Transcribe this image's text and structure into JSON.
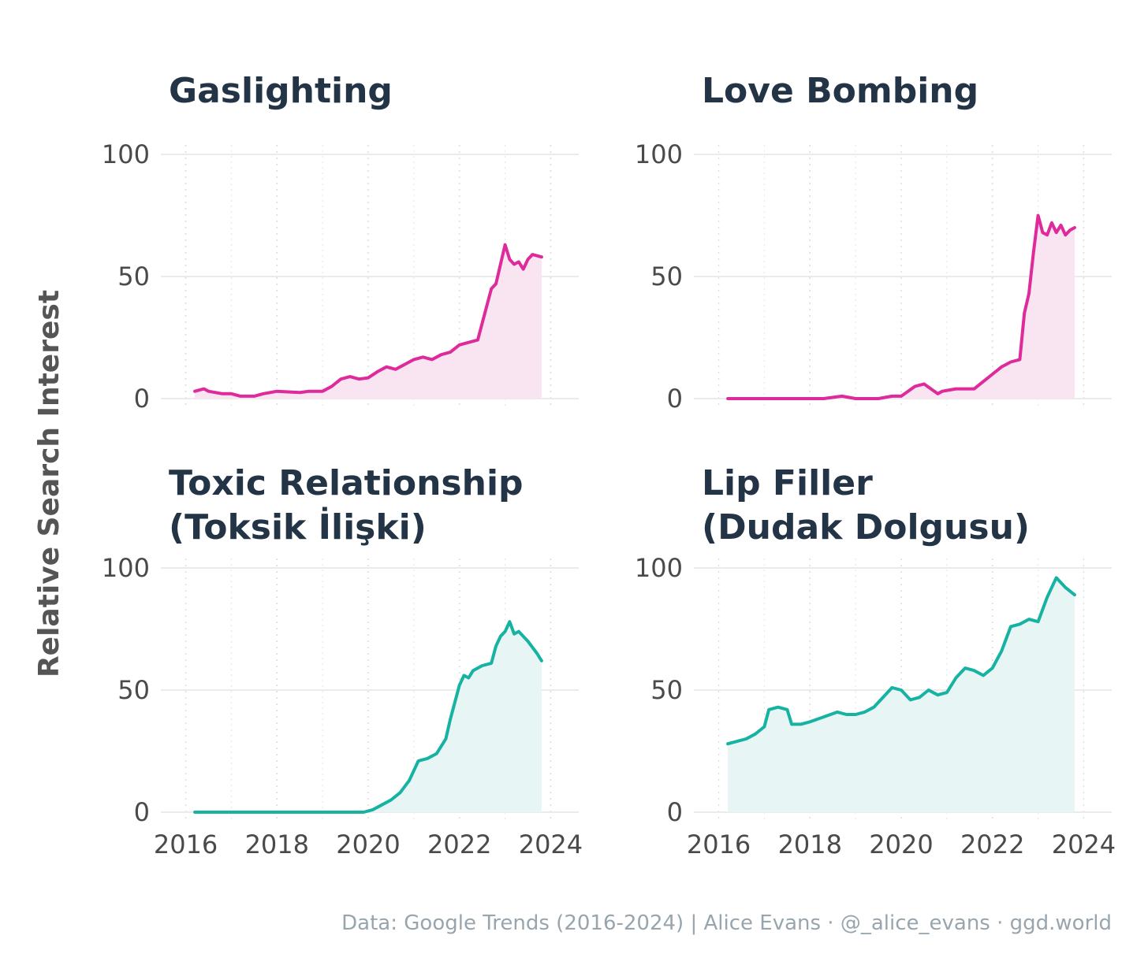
{
  "chart_data": {
    "type": "line",
    "y_axis_title": "Relative Search Interest",
    "ylim": [
      0,
      100
    ],
    "y_ticks": [
      0,
      50,
      100
    ],
    "x_ticks": [
      2016,
      2018,
      2020,
      2022,
      2024
    ],
    "caption": "Data: Google Trends (2016-2024) | Alice Evans · @_alice_evans · ggd.world",
    "panels": [
      {
        "id": "gaslighting",
        "title_lines": [
          "Gaslighting"
        ],
        "color": "#DE2A9B",
        "fill": "#F9E4F1",
        "show_x_labels": false,
        "x": [
          2016.2,
          2016.4,
          2016.5,
          2016.8,
          2017.0,
          2017.2,
          2017.3,
          2017.5,
          2017.7,
          2018.0,
          2018.5,
          2018.7,
          2019.0,
          2019.2,
          2019.4,
          2019.6,
          2019.8,
          2020.0,
          2020.2,
          2020.4,
          2020.6,
          2020.8,
          2021.0,
          2021.2,
          2021.4,
          2021.6,
          2021.8,
          2022.0,
          2022.2,
          2022.4,
          2022.6,
          2022.7,
          2022.8,
          2022.9,
          2023.0,
          2023.1,
          2023.2,
          2023.3,
          2023.4,
          2023.5,
          2023.6,
          2023.8
        ],
        "y": [
          3,
          4,
          3,
          2,
          2,
          1,
          1,
          1,
          2,
          3,
          2.5,
          3,
          3,
          5,
          8,
          9,
          8,
          8.5,
          11,
          13,
          12,
          14,
          16,
          17,
          16,
          18,
          19,
          22,
          23,
          24,
          38,
          45,
          47,
          55,
          63,
          57,
          55,
          56,
          53,
          57,
          59,
          58
        ],
        "markers": []
      },
      {
        "id": "love-bombing",
        "title_lines": [
          "Love Bombing"
        ],
        "color": "#DE2A9B",
        "fill": "#F9E4F1",
        "show_x_labels": false,
        "x": [
          2016.2,
          2017.0,
          2018.0,
          2018.3,
          2018.7,
          2019.0,
          2019.5,
          2019.8,
          2020.0,
          2020.3,
          2020.5,
          2020.8,
          2020.9,
          2021.2,
          2021.4,
          2021.6,
          2021.8,
          2022.0,
          2022.2,
          2022.4,
          2022.6,
          2022.7,
          2022.8,
          2022.9,
          2023.0,
          2023.1,
          2023.2,
          2023.3,
          2023.4,
          2023.5,
          2023.6,
          2023.7,
          2023.8
        ],
        "y": [
          0,
          0,
          0,
          0,
          1,
          0,
          0,
          1,
          1,
          5,
          6,
          2,
          3,
          4,
          4,
          4,
          7,
          10,
          13,
          15,
          16,
          35,
          43,
          60,
          75,
          68,
          67,
          72,
          68,
          71,
          67,
          69,
          70
        ],
        "markers": []
      },
      {
        "id": "toxic-relationship",
        "title_lines": [
          "Toxic Relationship",
          "(Toksik İlişki)"
        ],
        "color": "#16B3A3",
        "fill": "#E8F5F5",
        "show_x_labels": true,
        "x": [
          2016.2,
          2017.0,
          2018.0,
          2019.0,
          2019.9,
          2020.1,
          2020.3,
          2020.5,
          2020.7,
          2020.9,
          2021.1,
          2021.3,
          2021.5,
          2021.7,
          2021.8,
          2021.9,
          2022.0,
          2022.1,
          2022.2,
          2022.3,
          2022.5,
          2022.7,
          2022.8,
          2022.9,
          2023.0,
          2023.1,
          2023.2,
          2023.3,
          2023.5,
          2023.7,
          2023.8
        ],
        "y": [
          0,
          0,
          0,
          0,
          0,
          1,
          3,
          5,
          8,
          13,
          21,
          22,
          24,
          30,
          38,
          45,
          52,
          56,
          55,
          58,
          60,
          61,
          68,
          72,
          74,
          78,
          73,
          74,
          70,
          65,
          62
        ],
        "markers": []
      },
      {
        "id": "lip-filler",
        "title_lines": [
          "Lip Filler",
          "(Dudak Dolgusu)"
        ],
        "color": "#16B3A3",
        "fill": "#E8F5F5",
        "show_x_labels": true,
        "x": [
          2016.2,
          2016.4,
          2016.6,
          2016.8,
          2017.0,
          2017.1,
          2017.3,
          2017.5,
          2017.6,
          2017.8,
          2018.0,
          2018.3,
          2018.6,
          2018.8,
          2019.0,
          2019.2,
          2019.4,
          2019.6,
          2019.8,
          2020.0,
          2020.2,
          2020.4,
          2020.6,
          2020.8,
          2021.0,
          2021.2,
          2021.4,
          2021.6,
          2021.8,
          2022.0,
          2022.2,
          2022.4,
          2022.6,
          2022.8,
          2023.0,
          2023.2,
          2023.3,
          2023.4,
          2023.6,
          2023.8
        ],
        "y": [
          28,
          29,
          30,
          32,
          35,
          42,
          43,
          42,
          36,
          36,
          37,
          39,
          41,
          40,
          40,
          41,
          43,
          47,
          51,
          50,
          46,
          47,
          50,
          48,
          49,
          55,
          59,
          58,
          56,
          59,
          66,
          76,
          77,
          79,
          78,
          88,
          92,
          96,
          92,
          89
        ],
        "markers": []
      }
    ]
  }
}
